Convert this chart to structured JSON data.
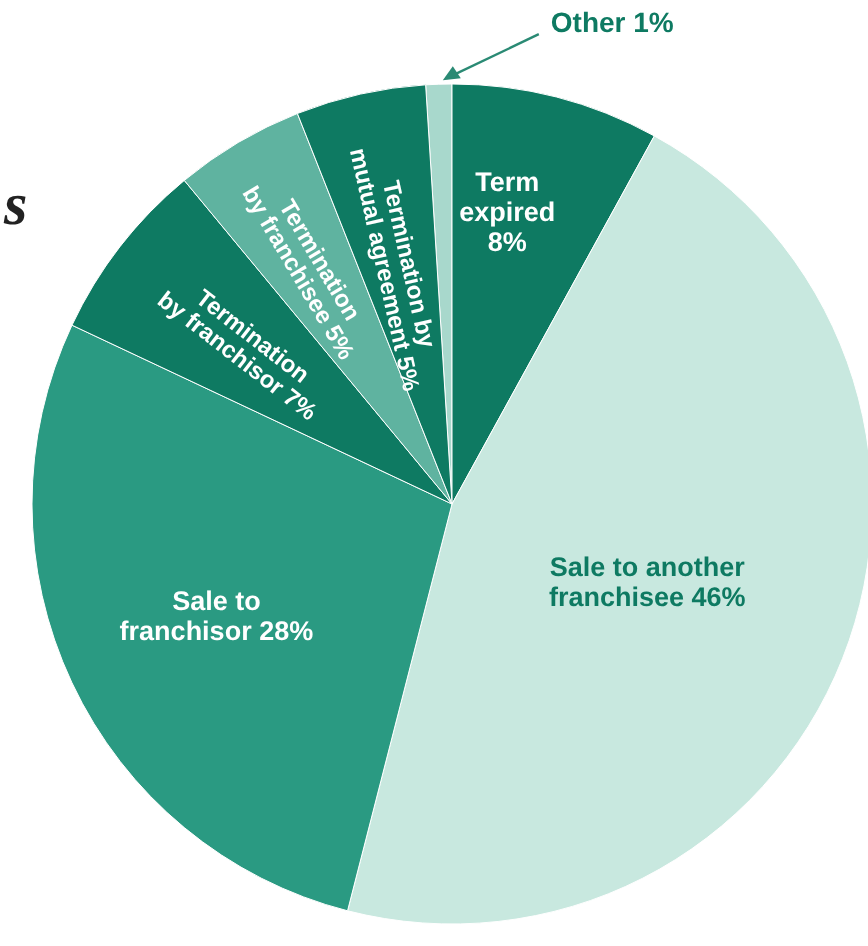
{
  "chart_data": {
    "type": "pie",
    "title": "s",
    "categories": [
      "Other",
      "Term expired",
      "Sale to another franchisee",
      "Sale to franchisor",
      "Termination by franchisor",
      "Termination by franchisee",
      "Termination by mutual agreement"
    ],
    "values": [
      1,
      8,
      46,
      28,
      7,
      5,
      5
    ],
    "value_labels": [
      "1%",
      "8%",
      "46%",
      "28%",
      "7%",
      "5%",
      "5%"
    ],
    "colors": [
      "#a8d8cc",
      "#0e7a62",
      "#c8e8df",
      "#2a9a82",
      "#0e7a62",
      "#5fb3a0",
      "#0e7a62"
    ]
  }
}
